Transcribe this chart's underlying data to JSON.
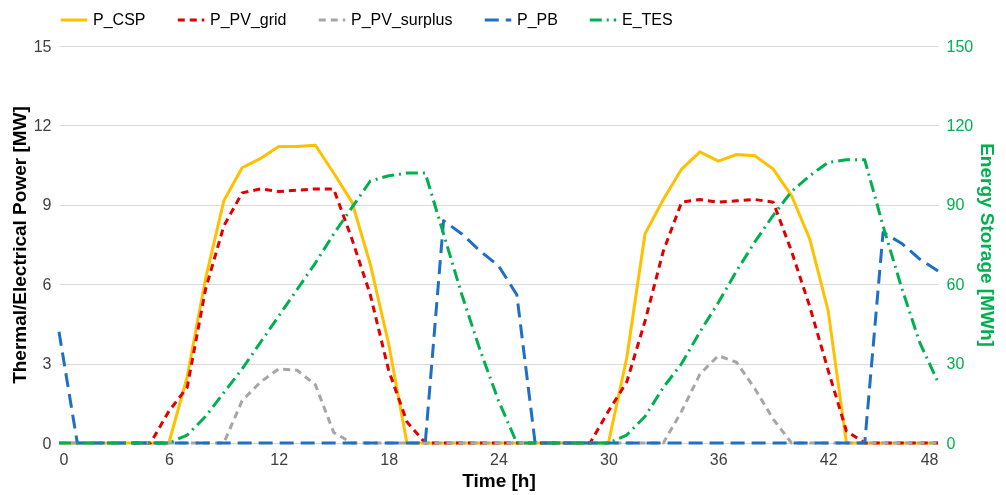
{
  "chart_data": {
    "type": "line",
    "xlabel": "Time [h]",
    "ylabel": "Thermal/Electrical Power [MW]",
    "y2label": "Energy Storage [MWh]",
    "x": [
      0,
      1,
      2,
      3,
      4,
      5,
      6,
      7,
      8,
      9,
      10,
      11,
      12,
      13,
      14,
      15,
      16,
      17,
      18,
      19,
      20,
      21,
      22,
      23,
      24,
      25,
      26,
      27,
      28,
      29,
      30,
      31,
      32,
      33,
      34,
      35,
      36,
      37,
      38,
      39,
      40,
      41,
      42,
      43,
      44,
      45,
      46,
      47,
      48
    ],
    "xlim": [
      0,
      48
    ],
    "xticks": [
      0,
      6,
      12,
      18,
      24,
      30,
      36,
      42,
      48
    ],
    "ylim": [
      0,
      15
    ],
    "yticks": [
      0,
      3,
      6,
      9,
      12,
      15
    ],
    "y2lim": [
      0,
      150
    ],
    "y2ticks": [
      0,
      30,
      60,
      90,
      120,
      150
    ],
    "grid": "y",
    "legend": "top",
    "marker": "none",
    "series": [
      {
        "name": "P_CSP",
        "color": "#ffc000",
        "line_style": "solid",
        "values": [
          0,
          0,
          0,
          0,
          0,
          0,
          0,
          2.5,
          6.2,
          9.15,
          10.4,
          10.75,
          11.2,
          11.2,
          11.25,
          10.2,
          9.1,
          6.75,
          3.75,
          0,
          0,
          0,
          0,
          0,
          0,
          0,
          0,
          0,
          0,
          0,
          0,
          3.2,
          7.9,
          9.2,
          10.35,
          11.0,
          10.65,
          10.9,
          10.85,
          10.35,
          9.35,
          7.7,
          5.0,
          0,
          0,
          0,
          0,
          0,
          0
        ]
      },
      {
        "name": "P_PV_grid",
        "color": "#e00000",
        "line_style": "dashed",
        "values": [
          null,
          null,
          null,
          null,
          0,
          0,
          1.2,
          2.1,
          5.8,
          8.2,
          9.45,
          9.6,
          9.5,
          9.55,
          9.6,
          9.6,
          7.7,
          5.6,
          2.75,
          0.8,
          0,
          0,
          0,
          0,
          0,
          0,
          0,
          0,
          0,
          0,
          1.2,
          2.3,
          4.6,
          7.25,
          9.1,
          9.2,
          9.1,
          9.15,
          9.2,
          9.1,
          7.25,
          5.15,
          2.75,
          0.45,
          0,
          0,
          0,
          0,
          0
        ]
      },
      {
        "name": "P_PV_surplus",
        "color": "#a6a6a6",
        "line_style": "dashed",
        "values": [
          0,
          0,
          0,
          0,
          0,
          0,
          0,
          0,
          0,
          0,
          1.6,
          2.3,
          2.8,
          2.75,
          2.2,
          0.4,
          0,
          0,
          0,
          0,
          0,
          0,
          0,
          0,
          0,
          0,
          0,
          0,
          0,
          0,
          0,
          0,
          0,
          0,
          1.2,
          2.6,
          3.3,
          3.05,
          2.05,
          0.9,
          0,
          0,
          0,
          0,
          0,
          0,
          0,
          0,
          0
        ]
      },
      {
        "name": "P_PB",
        "color": "#1f6fc5",
        "line_style": "longdash",
        "values": [
          4.2,
          0,
          0,
          0,
          0,
          0,
          0,
          0,
          0,
          0,
          0,
          0,
          0,
          0,
          0,
          0,
          0,
          0,
          0,
          0,
          0,
          8.4,
          7.9,
          7.25,
          6.7,
          5.6,
          0,
          0,
          0,
          0,
          0,
          0,
          0,
          0,
          0,
          0,
          0,
          0,
          0,
          0,
          0,
          0,
          0,
          0,
          0,
          7.95,
          7.55,
          6.95,
          6.5
        ]
      },
      {
        "name": "E_TES",
        "color": "#00b050",
        "line_style": "dashdot",
        "axis": "y2",
        "values": [
          0,
          0,
          0,
          0,
          0,
          0,
          0,
          3,
          10,
          19,
          28,
          38,
          48,
          58,
          68,
          79,
          89,
          99,
          101,
          102,
          102,
          79,
          56,
          35,
          16,
          0,
          0,
          0,
          0,
          0,
          0,
          3,
          10,
          21,
          30,
          42,
          53,
          65,
          76,
          86,
          95,
          101,
          106,
          107,
          107,
          82,
          59,
          38,
          23
        ]
      }
    ]
  }
}
